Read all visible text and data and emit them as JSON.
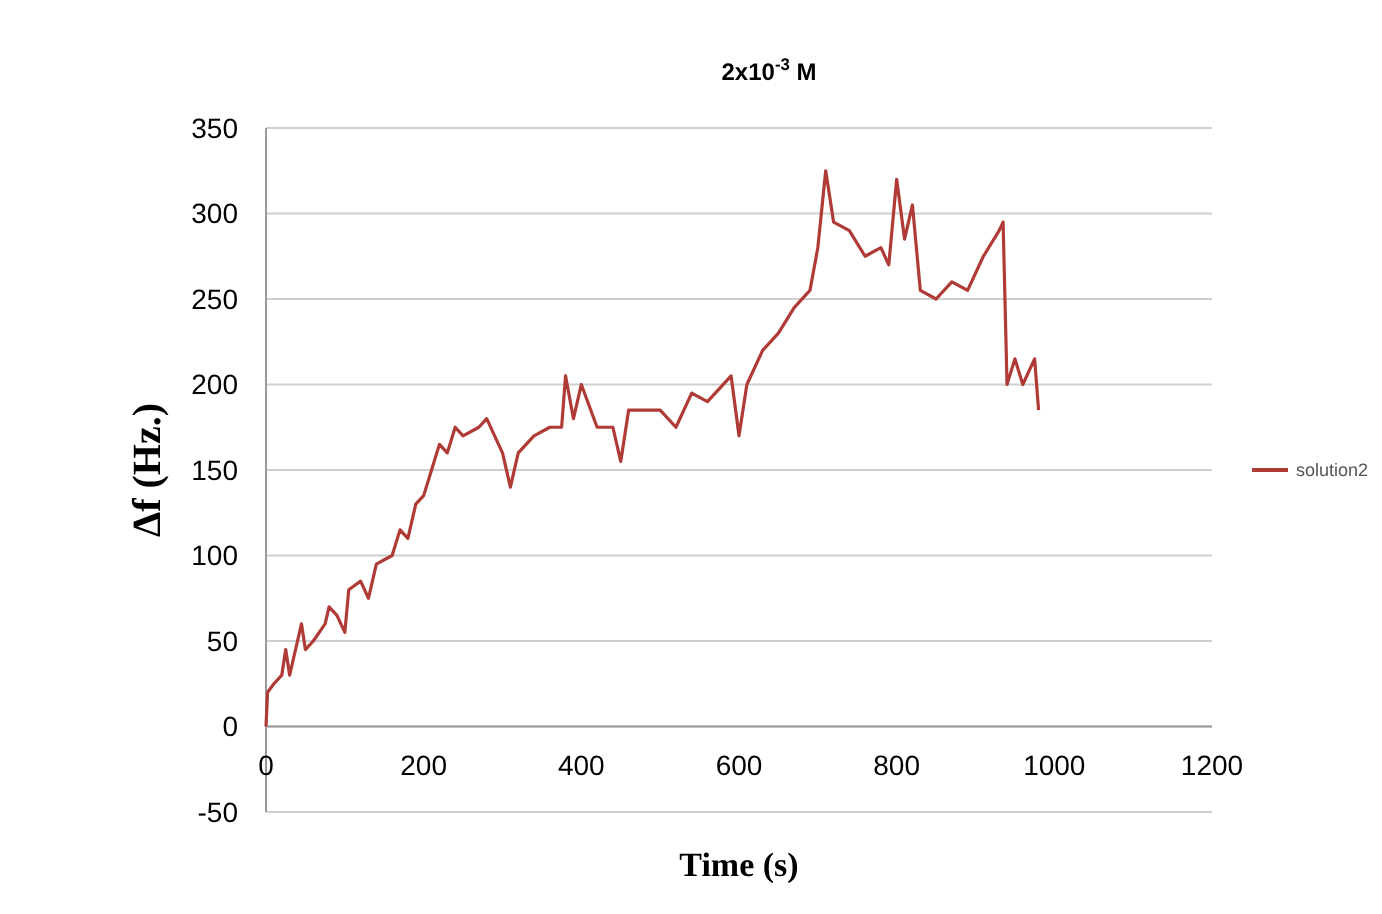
{
  "chart_data": {
    "type": "line",
    "title": "2x10$^{-3}$ M",
    "xlabel": "Time (s)",
    "ylabel": "Δf (Hz.)",
    "xlim": [
      0,
      1200
    ],
    "xticks": [
      0,
      200,
      400,
      600,
      800,
      1000,
      1200
    ],
    "ylim": [
      -50,
      350
    ],
    "yticks": [
      -50,
      0,
      50,
      100,
      150,
      200,
      250,
      300,
      350
    ],
    "grid": "y",
    "legend": "right",
    "marker": "none",
    "line_style": "solid",
    "series": [
      {
        "name": "solution2",
        "color": "#b03a36",
        "x": [
          0,
          2,
          10,
          20,
          25,
          30,
          40,
          45,
          50,
          60,
          75,
          80,
          90,
          100,
          105,
          120,
          130,
          140,
          160,
          170,
          180,
          190,
          200,
          210,
          220,
          230,
          240,
          250,
          270,
          280,
          290,
          300,
          310,
          320,
          340,
          360,
          375,
          380,
          390,
          400,
          420,
          440,
          450,
          460,
          500,
          520,
          540,
          560,
          590,
          600,
          610,
          630,
          650,
          670,
          690,
          700,
          710,
          720,
          740,
          760,
          780,
          790,
          800,
          810,
          820,
          830,
          850,
          870,
          890,
          910,
          930,
          935,
          940,
          950,
          960,
          975,
          980
        ],
        "values": [
          0,
          20,
          25,
          30,
          45,
          30,
          50,
          60,
          45,
          50,
          60,
          70,
          65,
          55,
          80,
          85,
          75,
          95,
          100,
          115,
          110,
          130,
          135,
          150,
          165,
          160,
          175,
          170,
          175,
          180,
          170,
          160,
          140,
          160,
          170,
          175,
          175,
          205,
          180,
          200,
          175,
          175,
          155,
          185,
          185,
          175,
          195,
          190,
          205,
          170,
          200,
          220,
          230,
          245,
          255,
          280,
          325,
          295,
          290,
          275,
          280,
          270,
          320,
          285,
          305,
          255,
          250,
          260,
          255,
          275,
          290,
          295,
          200,
          215,
          200,
          215,
          185
        ]
      }
    ]
  }
}
